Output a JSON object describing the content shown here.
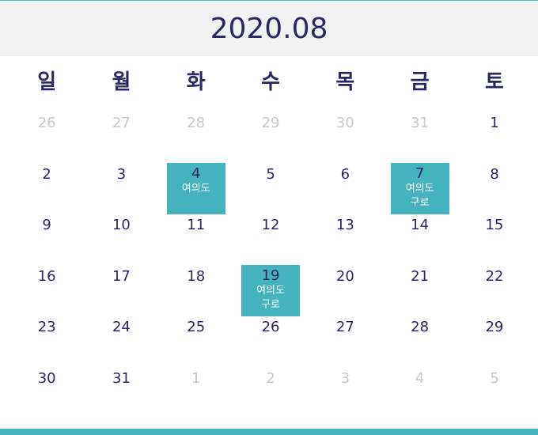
{
  "calendar": {
    "title": "2020.08",
    "weekdays": [
      "일",
      "월",
      "화",
      "수",
      "목",
      "금",
      "토"
    ],
    "days": [
      {
        "n": "26",
        "muted": true
      },
      {
        "n": "27",
        "muted": true
      },
      {
        "n": "28",
        "muted": true
      },
      {
        "n": "29",
        "muted": true
      },
      {
        "n": "30",
        "muted": true
      },
      {
        "n": "31",
        "muted": true
      },
      {
        "n": "1"
      },
      {
        "n": "2"
      },
      {
        "n": "3"
      },
      {
        "n": "4",
        "events": [
          "여의도"
        ]
      },
      {
        "n": "5"
      },
      {
        "n": "6"
      },
      {
        "n": "7",
        "events": [
          "여의도",
          "구로"
        ]
      },
      {
        "n": "8"
      },
      {
        "n": "9"
      },
      {
        "n": "10"
      },
      {
        "n": "11"
      },
      {
        "n": "12"
      },
      {
        "n": "13"
      },
      {
        "n": "14"
      },
      {
        "n": "15"
      },
      {
        "n": "16"
      },
      {
        "n": "17"
      },
      {
        "n": "18"
      },
      {
        "n": "19",
        "events": [
          "여의도",
          "구로"
        ]
      },
      {
        "n": "20"
      },
      {
        "n": "21"
      },
      {
        "n": "22"
      },
      {
        "n": "23"
      },
      {
        "n": "24"
      },
      {
        "n": "25"
      },
      {
        "n": "26"
      },
      {
        "n": "27"
      },
      {
        "n": "28"
      },
      {
        "n": "29"
      },
      {
        "n": "30"
      },
      {
        "n": "31"
      },
      {
        "n": "1",
        "muted": true
      },
      {
        "n": "2",
        "muted": true
      },
      {
        "n": "3",
        "muted": true
      },
      {
        "n": "4",
        "muted": true
      },
      {
        "n": "5",
        "muted": true
      }
    ]
  },
  "colors": {
    "accent": "#45b3bd",
    "text": "#2b2666",
    "muted": "#c8c8c8",
    "header_bg": "#f1f1f1"
  }
}
